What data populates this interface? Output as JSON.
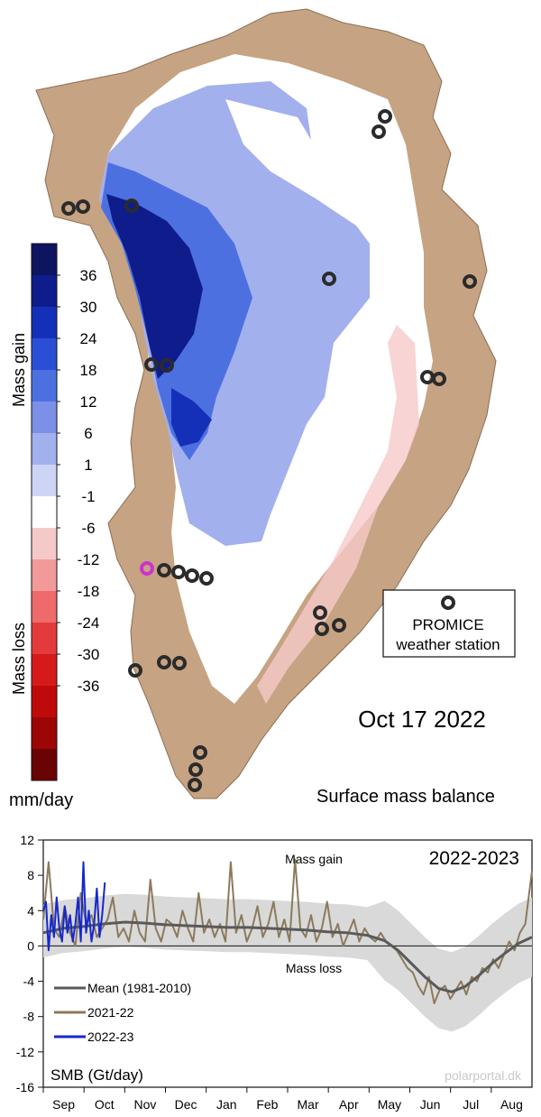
{
  "map": {
    "date": "Oct 17 2022",
    "title": "Surface mass balance",
    "colorbar": {
      "gain_label": "Mass gain",
      "loss_label": "Mass loss",
      "unit": "mm/day",
      "tick_labels": [
        "36",
        "30",
        "24",
        "18",
        "12",
        "6",
        "1",
        "-1",
        "-6",
        "-12",
        "-18",
        "-24",
        "-30",
        "-36"
      ],
      "colors": [
        "#0d1460",
        "#0f1c8c",
        "#1530b8",
        "#2a4fd6",
        "#4d70e0",
        "#7b90e6",
        "#a3b0ee",
        "#cdd4f6",
        "#ffffff",
        "#f6c9c9",
        "#f29a9a",
        "#ef6a6a",
        "#e33b3b",
        "#d61a1a",
        "#bf0a0a",
        "#9c0606",
        "#6a0303"
      ]
    },
    "legend": {
      "label_line1": "PROMICE",
      "label_line2": "weather station"
    },
    "colors": {
      "land": "#c6a382",
      "ice_white": "#ffffff",
      "station_ring": "#2b2b2b",
      "station_highlight": "#cc33cc"
    }
  },
  "chart_data": {
    "type": "line",
    "title": "2022-2023",
    "ylabel": "SMB (Gt/day)",
    "annotations": [
      "Mass gain",
      "Mass loss"
    ],
    "watermark": "polarportal.dk",
    "ylim": [
      -16,
      12
    ],
    "yticks": [
      12,
      8,
      4,
      0,
      -4,
      -8,
      -12,
      -16
    ],
    "xlim": [
      0,
      365
    ],
    "months": [
      "Sep",
      "Oct",
      "Nov",
      "Dec",
      "Jan",
      "Feb",
      "Mar",
      "Apr",
      "May",
      "Jun",
      "Jul",
      "Aug"
    ],
    "legend": [
      "Mean (1981-2010)",
      "2021-22",
      "2022-23"
    ],
    "series": [
      {
        "name": "Mean (1981-2010)",
        "color": "#5a5a5a",
        "x": [
          0,
          15,
          30,
          45,
          61,
          75,
          91,
          106,
          122,
          137,
          153,
          168,
          181,
          196,
          212,
          227,
          242,
          255,
          265,
          275,
          285,
          295,
          305,
          315,
          325,
          335,
          345,
          355,
          365
        ],
        "y": [
          1.5,
          2.0,
          2.2,
          2.5,
          2.7,
          2.6,
          2.4,
          2.3,
          2.2,
          2.1,
          2.1,
          2.0,
          1.9,
          1.8,
          1.6,
          1.5,
          1.2,
          0.6,
          -0.5,
          -2.0,
          -3.5,
          -4.8,
          -5.2,
          -4.6,
          -3.4,
          -2.0,
          -0.8,
          0.3,
          1.0
        ]
      },
      {
        "name": "2021-22",
        "color": "#8c7a5c",
        "x": [
          0,
          4,
          8,
          12,
          16,
          20,
          24,
          28,
          32,
          36,
          40,
          44,
          48,
          52,
          56,
          60,
          64,
          68,
          72,
          76,
          80,
          84,
          88,
          92,
          96,
          100,
          104,
          108,
          112,
          116,
          120,
          124,
          128,
          132,
          136,
          140,
          144,
          148,
          152,
          156,
          160,
          164,
          168,
          172,
          176,
          180,
          184,
          188,
          192,
          196,
          200,
          204,
          208,
          212,
          216,
          220,
          224,
          228,
          232,
          236,
          240,
          244,
          248,
          252,
          256,
          260,
          264,
          268,
          272,
          276,
          280,
          284,
          288,
          292,
          296,
          300,
          304,
          308,
          312,
          316,
          320,
          324,
          328,
          332,
          336,
          340,
          344,
          348,
          352,
          356,
          360,
          365
        ],
        "y": [
          3.0,
          9.5,
          2.0,
          1.0,
          4.5,
          1.5,
          0.0,
          6.0,
          2.5,
          3.5,
          1.0,
          2.0,
          3.0,
          5.5,
          1.0,
          2.0,
          0.5,
          4.0,
          1.5,
          0.5,
          7.5,
          2.0,
          0.5,
          3.0,
          2.5,
          1.0,
          4.0,
          2.0,
          0.5,
          6.0,
          1.5,
          3.0,
          1.0,
          2.5,
          0.5,
          9.5,
          1.5,
          3.5,
          0.5,
          2.0,
          4.5,
          1.0,
          2.5,
          5.0,
          1.0,
          3.0,
          0.5,
          9.8,
          2.0,
          1.0,
          3.5,
          0.5,
          2.0,
          5.0,
          1.0,
          2.5,
          0.0,
          1.5,
          3.0,
          0.5,
          2.0,
          1.0,
          0.5,
          1.5,
          0.5,
          0.0,
          -0.5,
          -1.5,
          -2.5,
          -3.0,
          -4.5,
          -5.5,
          -3.5,
          -6.5,
          -5.0,
          -4.5,
          -6.0,
          -5.0,
          -4.0,
          -5.5,
          -3.5,
          -4.0,
          -2.5,
          -3.0,
          -1.5,
          -2.5,
          -1.0,
          0.5,
          -0.5,
          1.5,
          2.5,
          8.5
        ]
      },
      {
        "name": "2022-23",
        "color": "#1528cc",
        "x": [
          0,
          2,
          4,
          6,
          8,
          10,
          12,
          14,
          16,
          18,
          20,
          22,
          24,
          26,
          28,
          30,
          32,
          34,
          36,
          38,
          40,
          42,
          44,
          46
        ],
        "y": [
          4.0,
          5.0,
          -0.5,
          3.5,
          1.0,
          5.5,
          2.0,
          0.5,
          4.5,
          1.5,
          3.5,
          0.5,
          2.5,
          5.5,
          0.5,
          9.5,
          1.5,
          4.0,
          0.5,
          2.5,
          6.5,
          1.0,
          3.5,
          7.2
        ]
      }
    ]
  }
}
